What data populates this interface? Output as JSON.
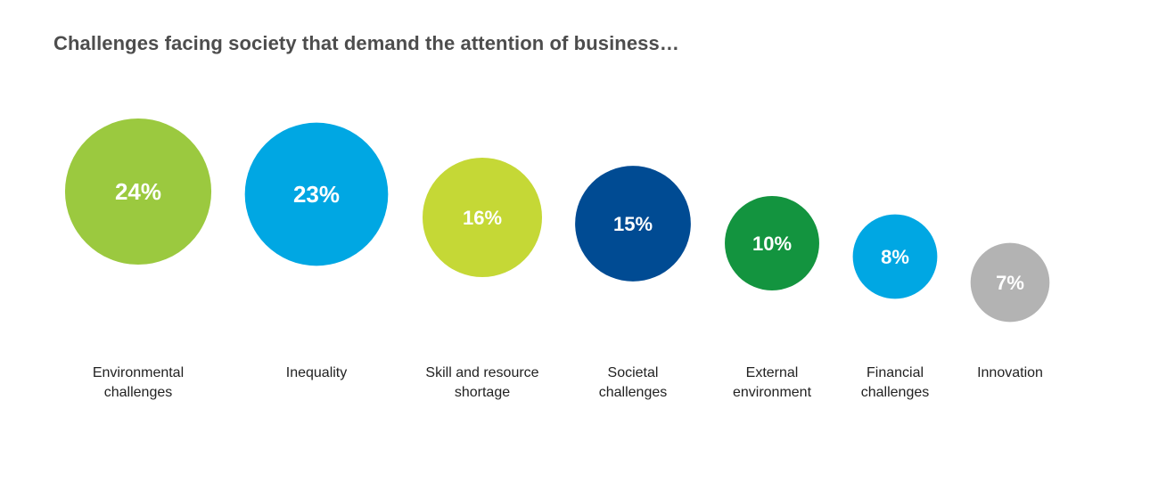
{
  "chart_data": {
    "type": "bubble",
    "title": "Challenges facing society that demand the attention of business…",
    "unit": "%",
    "categories": [
      {
        "label": [
          "Environmental",
          "challenges"
        ],
        "value": 24,
        "display": "24%",
        "color": "#9bc93f"
      },
      {
        "label": [
          "Inequality"
        ],
        "value": 23,
        "display": "23%",
        "color": "#00a7e3"
      },
      {
        "label": [
          "Skill and resource",
          "shortage"
        ],
        "value": 16,
        "display": "16%",
        "color": "#c5d836"
      },
      {
        "label": [
          "Societal",
          "challenges"
        ],
        "value": 15,
        "display": "15%",
        "color": "#004b93"
      },
      {
        "label": [
          "External",
          "environment"
        ],
        "value": 10,
        "display": "10%",
        "color": "#13943f"
      },
      {
        "label": [
          "Financial",
          "challenges"
        ],
        "value": 8,
        "display": "8%",
        "color": "#00a7e3"
      },
      {
        "label": [
          "Innovation"
        ],
        "value": 7,
        "display": "7%",
        "color": "#b3b3b3"
      }
    ]
  }
}
